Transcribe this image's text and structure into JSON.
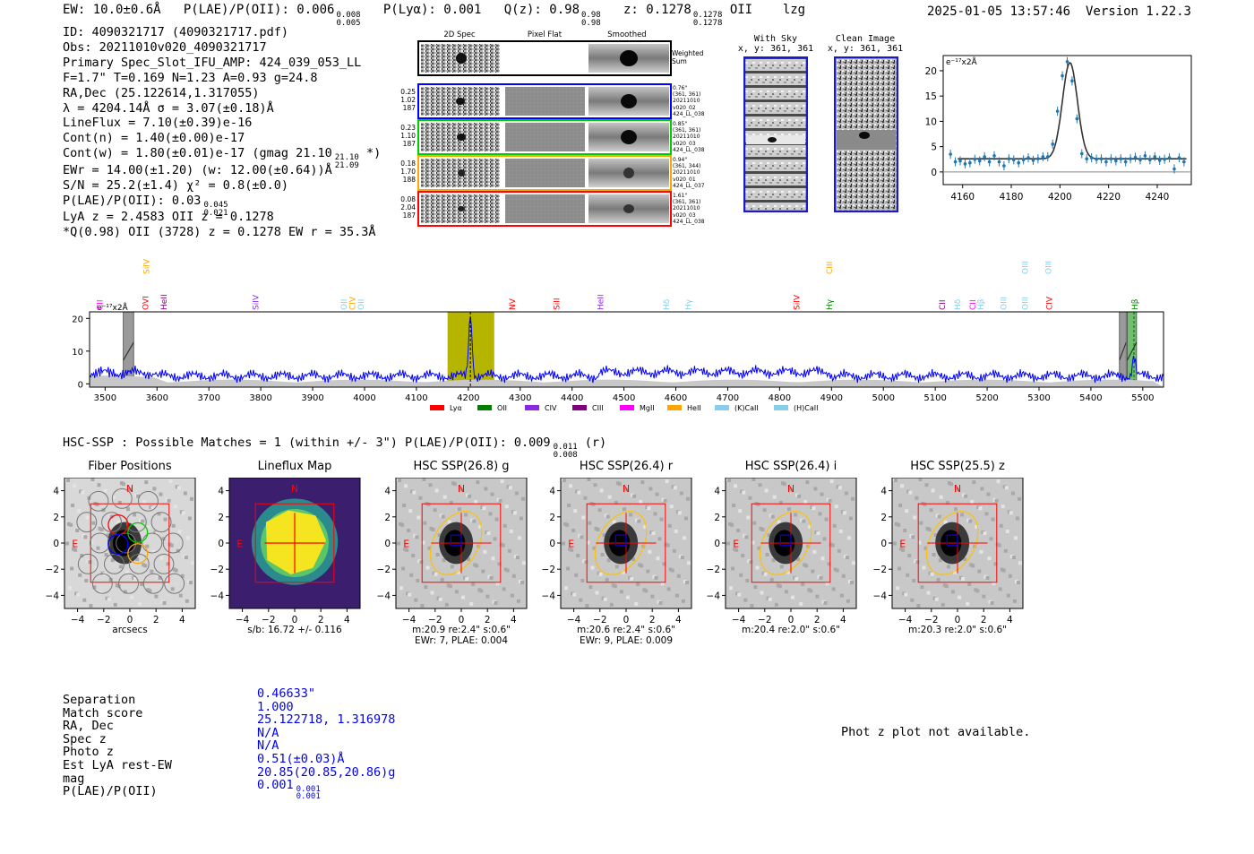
{
  "header": {
    "ew": "EW: 10.0±0.6Å",
    "plae_main": "P(LAE)/P(OII): 0.006",
    "plae_hi": "0.008",
    "plae_lo": "0.005",
    "plya": "P(Lyα): 0.001",
    "qz_main": "Q(z): 0.98",
    "qz_hi": "0.98",
    "qz_lo": "0.98",
    "z_main": "z: 0.1278",
    "z_hi": "0.1278",
    "z_lo": "0.1278",
    "z_line": "OII",
    "tag": "lzg",
    "timestamp": "2025-01-05 13:57:46",
    "version": "Version 1.22.3"
  },
  "info": {
    "id": "ID: 4090321717 (4090321717.pdf)",
    "obs": "Obs: 20211010v020_4090321717",
    "primary": "Primary Spec_Slot_IFU_AMP: 424_039_053_LL",
    "fwhm": "F=1.7\"  T=0.169  N=1.23  A=0.93  g=24.8",
    "radec": "RA,Dec (25.122614,1.317055)",
    "lambda": "λ = 4204.14Å  σ = 3.07(±0.18)Å",
    "lineflux": "LineFlux = 7.10(±0.39)e-16",
    "contn": "Cont(n) = 1.40(±0.00)e-17",
    "contw_main": "Cont(w) = 1.80(±0.01)e-17 (gmag 21.10",
    "contw_hi": "21.10",
    "contw_lo": "21.09",
    "contw_end": "*)",
    "ewr": "EWr = 14.00(±1.20) (w: 12.00(±0.64))Å",
    "sn": "S/N = 25.2(±1.4)  χ² = 0.8(±0.0)",
    "plae_main": "P(LAE)/P(OII): 0.03",
    "plae_hi": "0.045",
    "plae_lo": "0.021",
    "lya": "LyA z = 2.4583  OII z = 0.1278",
    "q": "*Q(0.98) OII (3728) z = 0.1278  EW r = 35.3Å"
  },
  "cutouts": {
    "col_labels": [
      "2D Spec",
      "Pixel Flat",
      "Smoothed"
    ],
    "weighted_sum": [
      "Weighted",
      "Sum"
    ],
    "rows": [
      {
        "left": [
          "0.25",
          "1.02",
          "187"
        ],
        "right": [
          "0.76\"",
          "(361, 361)",
          "20211010",
          "v020_02",
          "424_LL_038"
        ],
        "color": "#0000ff"
      },
      {
        "left": [
          "0.23",
          "1.10",
          "187"
        ],
        "right": [
          "0.85\"",
          "(361, 361)",
          "20211010",
          "v020_03",
          "424_LL_038"
        ],
        "color": "#00cc00"
      },
      {
        "left": [
          "0.18",
          "1.70",
          "188"
        ],
        "right": [
          "0.94\"",
          "(361, 344)",
          "20211010",
          "v020_01",
          "424_LL_037"
        ],
        "color": "#ffa500"
      },
      {
        "left": [
          "0.08",
          "2.04",
          "187"
        ],
        "right": [
          "1.61\"",
          "(361, 361)",
          "20211010",
          "v020_03",
          "424_LL_038"
        ],
        "color": "#ff0000"
      }
    ],
    "with_sky": [
      "With Sky",
      "x, y: 361, 361"
    ],
    "clean_image": [
      "Clean Image",
      "x, y: 361, 361"
    ]
  },
  "zoom_chart": {
    "type": "scatter",
    "unit_label": "e⁻¹⁷x2Å",
    "xticks": [
      "4160",
      "4180",
      "4200",
      "4220",
      "4240"
    ],
    "xtick_values": [
      4160,
      4180,
      4200,
      4220,
      4240
    ],
    "yticks": [
      "0",
      "5",
      "10",
      "15",
      "20"
    ],
    "ytick_values": [
      0,
      5,
      10,
      15,
      20
    ],
    "xlim": [
      4152,
      4254
    ],
    "ylim": [
      -2.5,
      23
    ],
    "x": [
      4155,
      4157,
      4159,
      4161,
      4163,
      4165,
      4167,
      4169,
      4171,
      4173,
      4175,
      4177,
      4179,
      4181,
      4183,
      4185,
      4187,
      4189,
      4191,
      4193,
      4195,
      4197,
      4199,
      4201,
      4203,
      4205,
      4207,
      4209,
      4211,
      4213,
      4215,
      4217,
      4219,
      4221,
      4223,
      4225,
      4227,
      4229,
      4231,
      4233,
      4235,
      4237,
      4239,
      4241,
      4243,
      4245,
      4247,
      4249,
      4251
    ],
    "y": [
      3.5,
      2.0,
      2.2,
      1.6,
      1.8,
      2.5,
      2.2,
      3.0,
      2.0,
      3.2,
      2.0,
      1.2,
      2.6,
      2.4,
      1.8,
      2.4,
      2.8,
      2.3,
      2.6,
      3.0,
      3.0,
      5.5,
      12.0,
      19.0,
      21.8,
      18.0,
      10.5,
      3.6,
      2.6,
      2.8,
      2.5,
      2.6,
      2.0,
      2.6,
      2.2,
      2.6,
      2.0,
      2.6,
      2.9,
      2.4,
      3.2,
      2.4,
      3.0,
      2.3,
      2.5,
      2.8,
      0.6,
      2.8,
      2.0
    ],
    "fit": {
      "center": 4204.1,
      "sigma": 3.07,
      "amp": 19.0,
      "cont": 2.6
    }
  },
  "spectrum_chart": {
    "type": "line",
    "unit_label": "e⁻¹⁷x2Å",
    "xlim": [
      3470,
      5540
    ],
    "ylim": [
      -1,
      22
    ],
    "xticks": [
      "3500",
      "3600",
      "3700",
      "3800",
      "3900",
      "4000",
      "4100",
      "4200",
      "4300",
      "4400",
      "4500",
      "4600",
      "4700",
      "4800",
      "4900",
      "5000",
      "5100",
      "5200",
      "5300",
      "5400",
      "5500"
    ],
    "xtick_values": [
      3500,
      3600,
      3700,
      3800,
      3900,
      4000,
      4100,
      4200,
      4300,
      4400,
      4500,
      4600,
      4700,
      4800,
      4900,
      5000,
      5100,
      5200,
      5300,
      5400,
      5500
    ],
    "yticks": [
      "0",
      "10",
      "20"
    ],
    "ytick_values": [
      0,
      10,
      20
    ],
    "peak_wavelength": 4204,
    "peak_value": 21,
    "highlight_band": [
      4160,
      4250
    ],
    "masked_bands": [
      [
        3535,
        3555
      ],
      [
        5455,
        5468
      ],
      [
        5470,
        5488
      ]
    ],
    "lines": [
      {
        "name": "CII",
        "wave": 3490,
        "color": "#ff00ff",
        "row": 2
      },
      {
        "name": "SiIV",
        "wave": 3580,
        "color": "#ffa500",
        "row": 0
      },
      {
        "name": "OVI",
        "wave": 3578,
        "color": "#ff0000",
        "row": 2
      },
      {
        "name": "HeII",
        "wave": 3613,
        "color": "#800080",
        "row": 2
      },
      {
        "name": "SiIV",
        "wave": 3790,
        "color": "#8a2be2",
        "row": 2
      },
      {
        "name": "OII",
        "wave": 3960,
        "color": "#87ceeb",
        "row": 2
      },
      {
        "name": "CIV",
        "wave": 3977,
        "color": "#ffa500",
        "row": 2
      },
      {
        "name": "OII",
        "wave": 3993,
        "color": "#87ceeb",
        "row": 2
      },
      {
        "name": "NV",
        "wave": 4285,
        "color": "#ff0000",
        "row": 2
      },
      {
        "name": "SiII",
        "wave": 4370,
        "color": "#ff0000",
        "row": 2
      },
      {
        "name": "HeII",
        "wave": 4455,
        "color": "#8a2be2",
        "row": 2
      },
      {
        "name": "Hδ",
        "wave": 4582,
        "color": "#87ceeb",
        "row": 2
      },
      {
        "name": "Hγ",
        "wave": 4624,
        "color": "#87ceeb",
        "row": 2
      },
      {
        "name": "SiIV",
        "wave": 4833,
        "color": "#ff0000",
        "row": 2
      },
      {
        "name": "CIII",
        "wave": 4896,
        "color": "#ffa500",
        "row": 0
      },
      {
        "name": "Hγ",
        "wave": 4896,
        "color": "#008000",
        "row": 2
      },
      {
        "name": "CII",
        "wave": 5114,
        "color": "#800080",
        "row": 2
      },
      {
        "name": "Hδ",
        "wave": 5143,
        "color": "#87ceeb",
        "row": 2
      },
      {
        "name": "CII",
        "wave": 5172,
        "color": "#ff00ff",
        "row": 2
      },
      {
        "name": "Hβ",
        "wave": 5188,
        "color": "#87ceeb",
        "row": 2
      },
      {
        "name": "OIII",
        "wave": 5232,
        "color": "#87ceeb",
        "row": 2
      },
      {
        "name": "OIII",
        "wave": 5273,
        "color": "#87ceeb",
        "row": 0
      },
      {
        "name": "OIII",
        "wave": 5273,
        "color": "#87ceeb",
        "row": 2
      },
      {
        "name": "OIII",
        "wave": 5318,
        "color": "#87ceeb",
        "row": 0
      },
      {
        "name": "CIV",
        "wave": 5320,
        "color": "#ff0000",
        "row": 2
      },
      {
        "name": "Hβ",
        "wave": 5485,
        "color": "#008000",
        "row": 2
      }
    ],
    "legend": [
      {
        "label": "Lyα",
        "color": "#ff0000"
      },
      {
        "label": "OII",
        "color": "#008000"
      },
      {
        "label": "CIV",
        "color": "#8a2be2"
      },
      {
        "label": "CIII",
        "color": "#800080"
      },
      {
        "label": "MgII",
        "color": "#ff00ff"
      },
      {
        "label": "HeII",
        "color": "#ffa500"
      },
      {
        "label": "(K)CaII",
        "color": "#87ceeb"
      },
      {
        "label": "(H)CaII",
        "color": "#87ceeb"
      }
    ]
  },
  "hsc": {
    "title_main": "HSC-SSP : Possible Matches = 1 (within +/- 3\")  P(LAE)/P(OII): 0.009",
    "title_hi": "0.011",
    "title_lo": "0.008",
    "title_end": "(r)",
    "axis_ticks": [
      "4",
      "2",
      "0",
      "−2",
      "−4"
    ],
    "xaxis_ticks": [
      "−4",
      "−2",
      "0",
      "2",
      "4"
    ],
    "north": "N",
    "east": "E",
    "panels": [
      {
        "title": "Fiber Positions",
        "caption": [
          "arcsecs"
        ]
      },
      {
        "title": "Lineflux Map",
        "caption": [
          "s/b: 16.72 +/- 0.116"
        ]
      },
      {
        "title": "HSC SSP(26.8) g",
        "caption": [
          "m:20.9  re:2.4\"  s:0.6\"",
          "EWr: 7, PLAE: 0.004"
        ]
      },
      {
        "title": "HSC SSP(26.4) r",
        "caption": [
          "m:20.6  re:2.4\"  s:0.6\"",
          "EWr: 9, PLAE: 0.009"
        ]
      },
      {
        "title": "HSC SSP(26.4) i",
        "caption": [
          "m:20.4  re:2.0\"  s:0.6\""
        ]
      },
      {
        "title": "HSC SSP(25.5) z",
        "caption": [
          "m:20.3  re:2.0\"  s:0.6\""
        ]
      }
    ]
  },
  "match_table": {
    "labels": [
      "Separation",
      "Match score",
      "RA, Dec",
      "Spec z",
      "Photo z",
      "Est LyA rest-EW",
      "mag",
      "P(LAE)/P(OII)"
    ],
    "values": [
      "0.46633\"",
      "1.000",
      "25.122718, 1.316978",
      "N/A",
      "N/A",
      "0.51(±0.03)Å",
      "20.85(20.85,20.86)g",
      "0.001"
    ],
    "plae_hi": "0.001",
    "plae_lo": "0.001"
  },
  "photz_message": "Phot z plot not available.",
  "colors": {
    "spectrum": "#0000ff",
    "errorbar": "#1f77b4",
    "fit": "#333333",
    "highlight": "#b5b500",
    "aperture": "#ff0000",
    "ellipse": "#ffc000"
  }
}
